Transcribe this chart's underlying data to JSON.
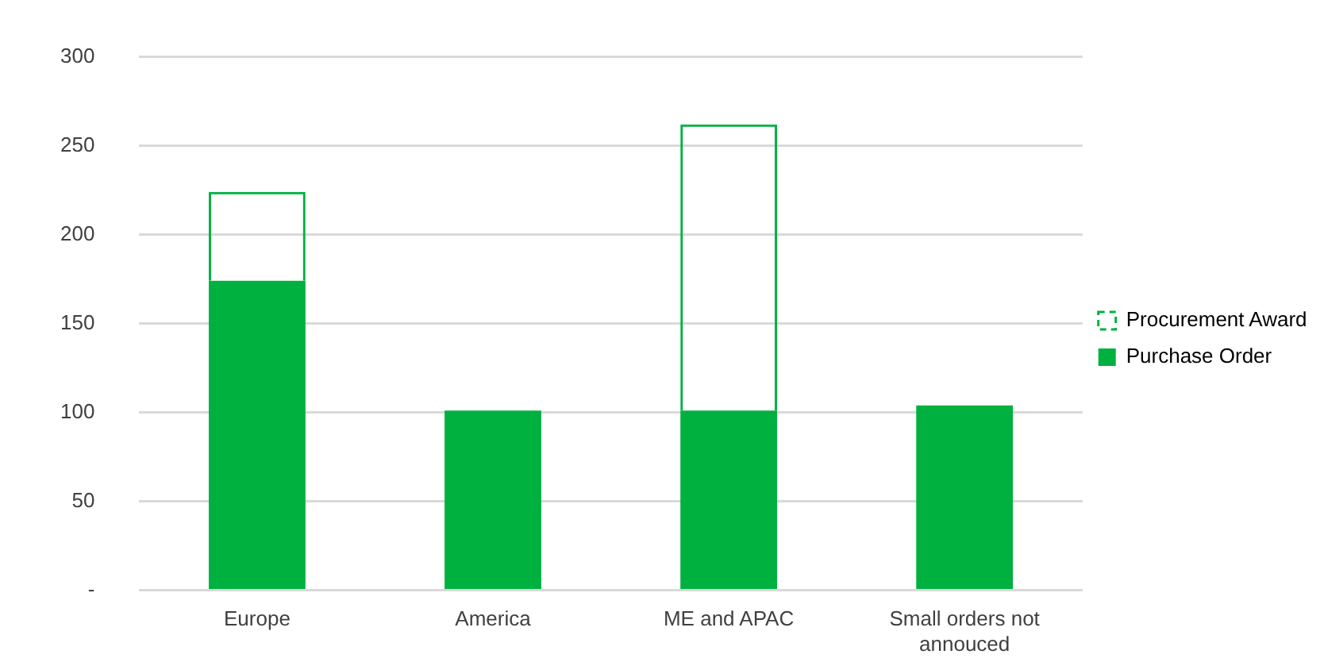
{
  "chart_data": {
    "type": "bar",
    "stacked": true,
    "categories": [
      "Europe",
      "America",
      "ME and APAC",
      "Small orders not annouced"
    ],
    "series": [
      {
        "name": "Purchase Order",
        "color": "#00b140",
        "values": [
          174,
          101,
          101,
          104
        ]
      },
      {
        "name": "Procurement Award",
        "color": "#00b140",
        "line_style": "dashed",
        "values": [
          50,
          null,
          161,
          null
        ]
      }
    ],
    "ylim": [
      0,
      300
    ],
    "yticks": [
      {
        "value": 0,
        "label": "-"
      },
      50,
      100,
      150,
      200,
      250,
      300
    ],
    "grid": "y",
    "legend": "right"
  }
}
